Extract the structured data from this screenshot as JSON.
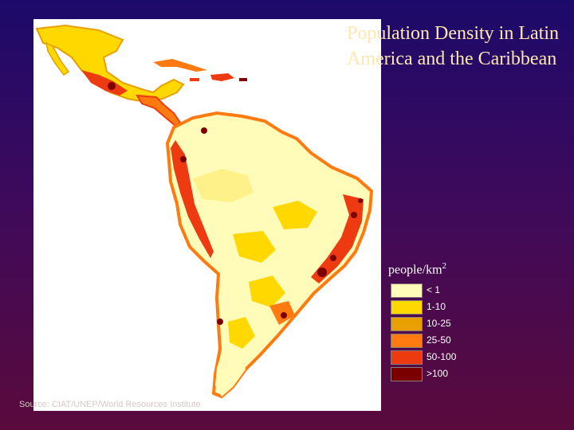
{
  "title": "Population Density in Latin America and the Caribbean",
  "legend": {
    "unit_text": "people/km",
    "unit_superscript": "2",
    "items": [
      {
        "label": "< 1",
        "color": "#fffbb8"
      },
      {
        "label": "1-10",
        "color": "#ffd800"
      },
      {
        "label": "10-25",
        "color": "#e8a000"
      },
      {
        "label": "25-50",
        "color": "#ff7a10"
      },
      {
        "label": "50-100",
        "color": "#ee3a10"
      },
      {
        "label": ">100",
        "color": "#7a0000"
      }
    ]
  },
  "source": "Source: CIAT/UNEP/World Resources Institute"
}
